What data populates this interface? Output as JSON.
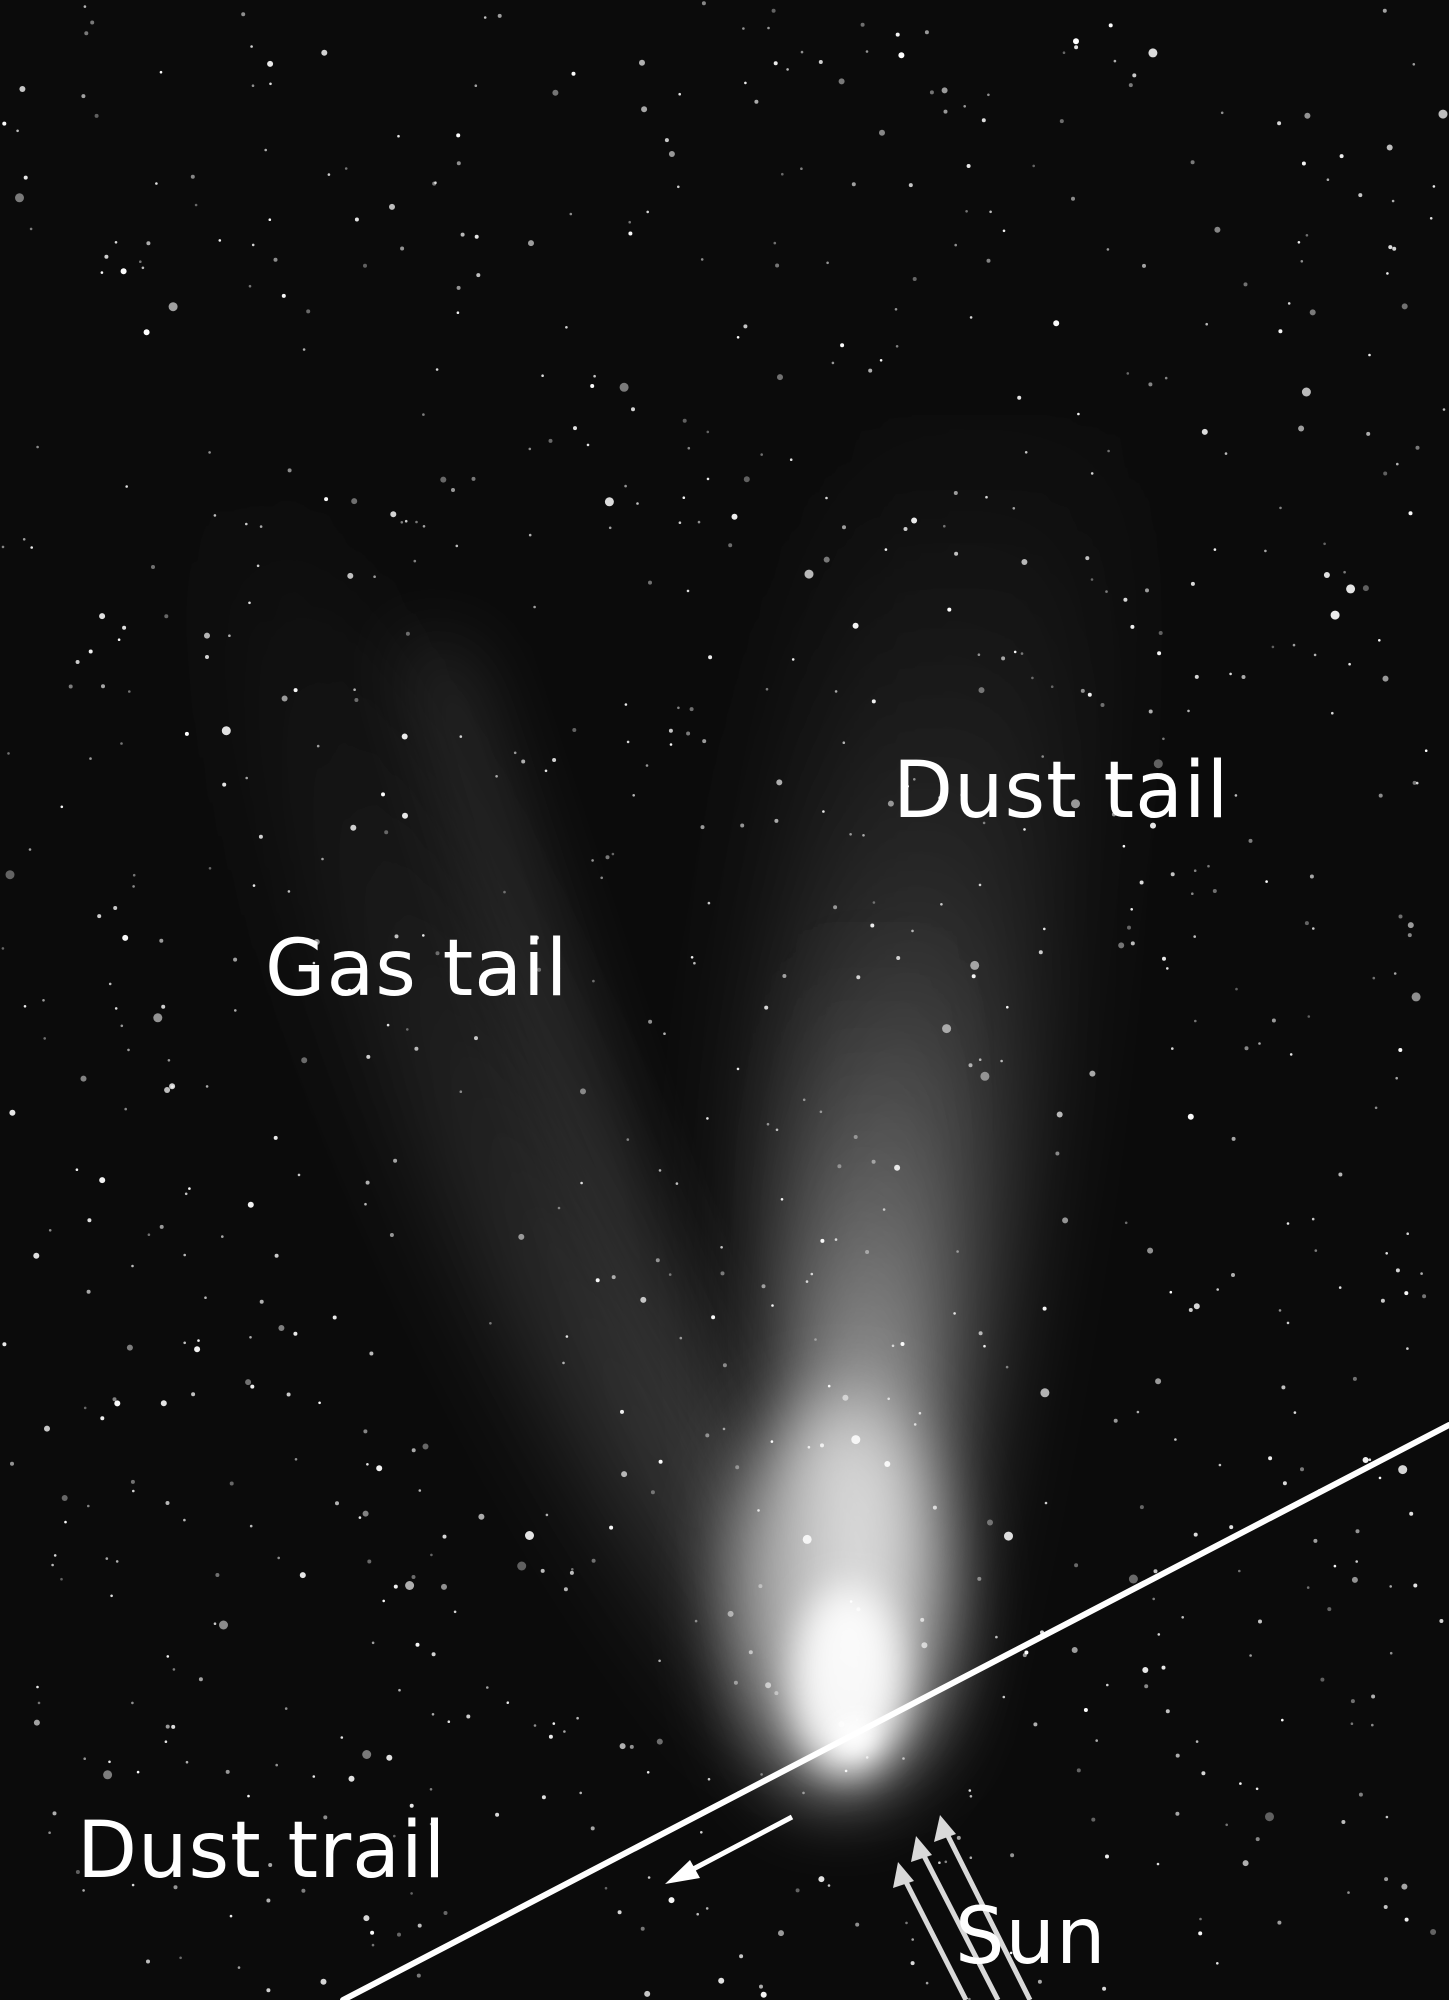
{
  "labels": {
    "dust_tail": "Dust tail",
    "gas_tail": "Gas tail",
    "dust_trail": "Dust trail",
    "sun": "Sun"
  },
  "colors": {
    "sky": "#0b0b0b",
    "annotation": "#ffffff",
    "sun_arrow": "#d9d9d9"
  }
}
